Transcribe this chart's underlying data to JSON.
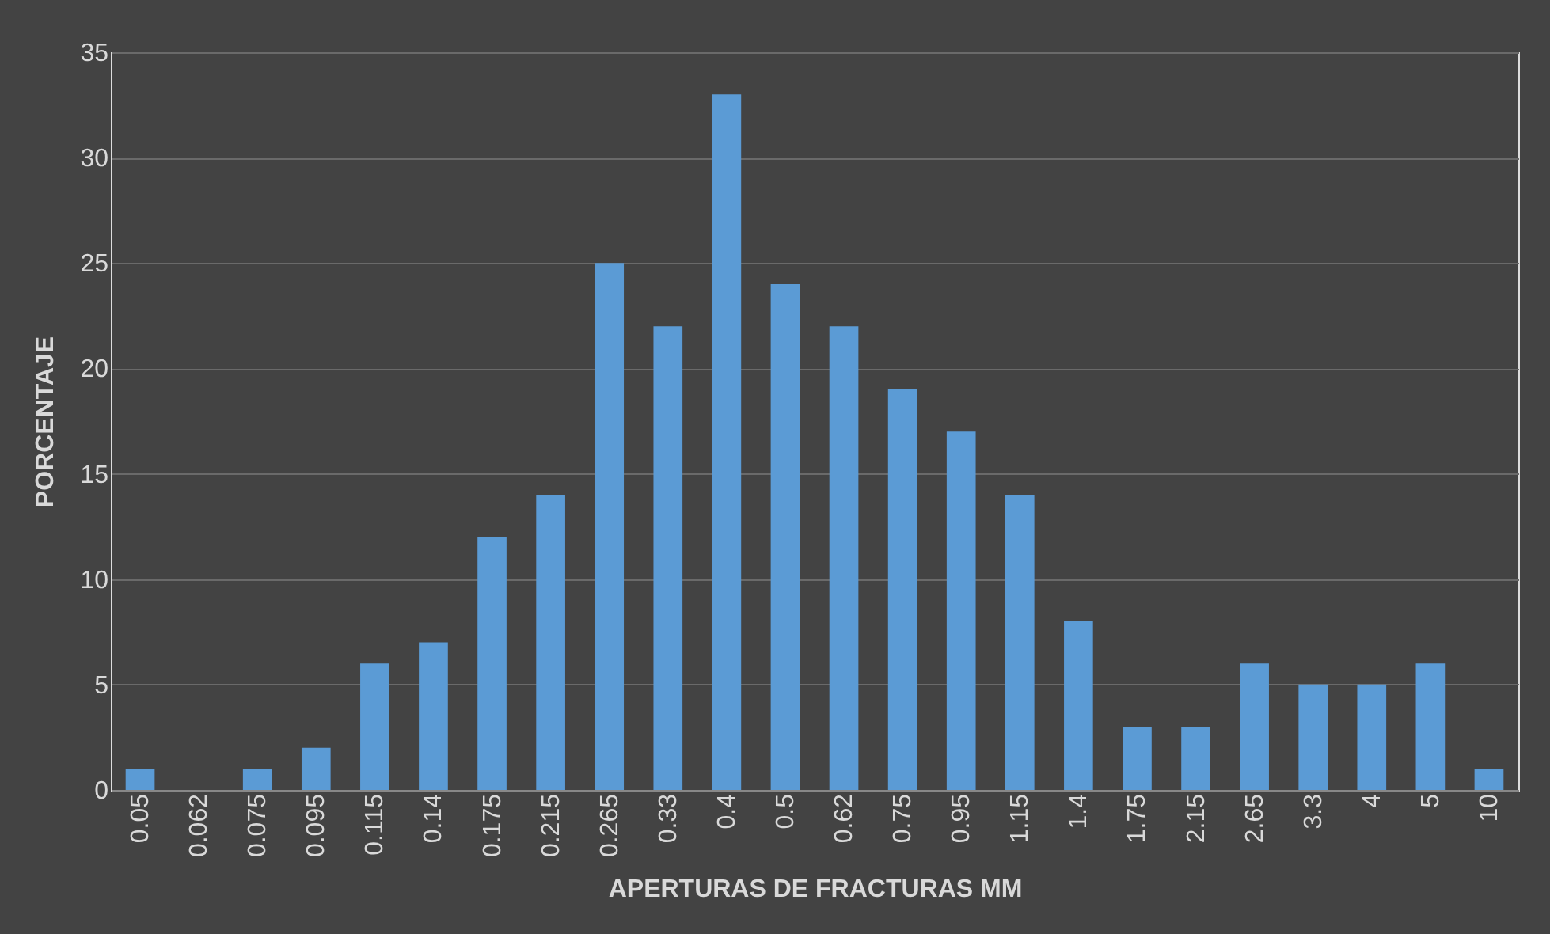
{
  "chart_data": {
    "type": "bar",
    "xlabel": "APERTURAS DE FRACTURAS MM",
    "ylabel": "PORCENTAJE",
    "categories": [
      "0.05",
      "0.062",
      "0.075",
      "0.095",
      "0.115",
      "0.14",
      "0.175",
      "0.215",
      "0.265",
      "0.33",
      "0.4",
      "0.5",
      "0.62",
      "0.75",
      "0.95",
      "1.15",
      "1.4",
      "1.75",
      "2.15",
      "2.65",
      "3.3",
      "4",
      "5",
      "10"
    ],
    "values": [
      1,
      0,
      1,
      2,
      6,
      7,
      12,
      14,
      25,
      22,
      33,
      24,
      22,
      19,
      17,
      14,
      8,
      3,
      3,
      6,
      5,
      5,
      6,
      1
    ],
    "color": "#5b9bd5",
    "ylim": [
      0,
      35
    ],
    "yticks": [
      0,
      5,
      10,
      15,
      20,
      25,
      30,
      35
    ],
    "grid": "y"
  }
}
